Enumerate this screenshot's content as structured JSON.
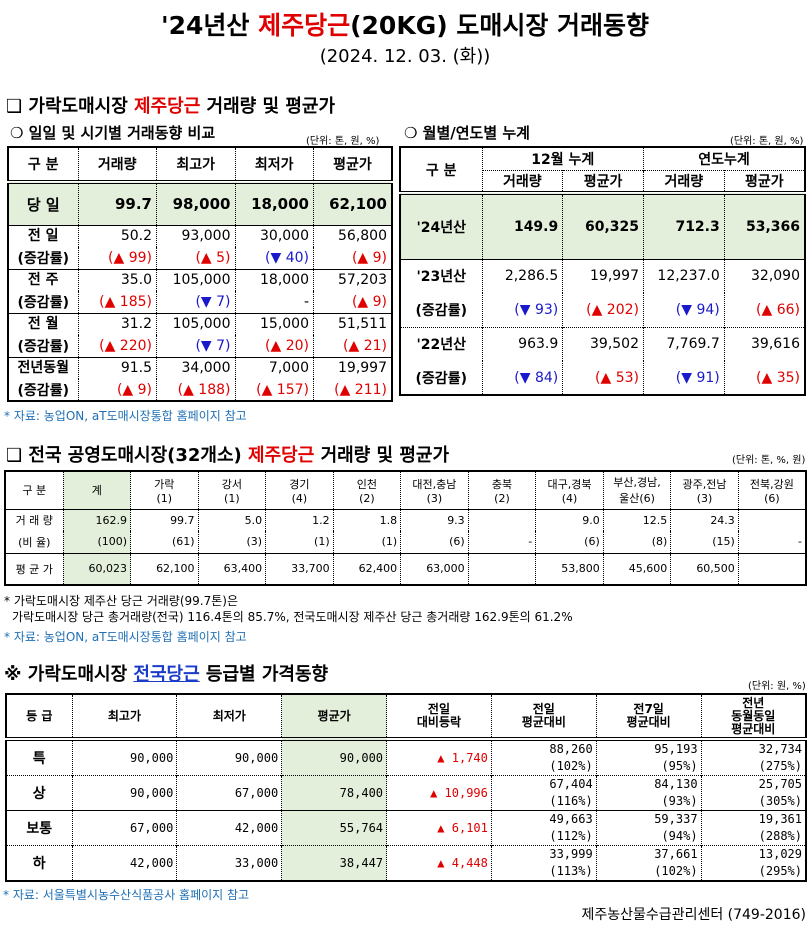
{
  "header": {
    "title_pre": "'24년산 ",
    "title_red": "제주당근",
    "title_post": "(20KG) 도매시장 거래동향",
    "date": "(2024. 12. 03. (화))"
  },
  "sec1": {
    "title_pre": "❑ 가락도매시장 ",
    "title_red": "제주당근",
    "title_post": " 거래량 및 평균가"
  },
  "daily": {
    "subtitle": "❍ 일일 및 시기별 거래동향 비교",
    "unit": "(단위: 톤, 원, %)",
    "headers": [
      "구  분",
      "거래량",
      "최고가",
      "최저가",
      "평균가"
    ],
    "today": {
      "label": "당  일",
      "values": [
        "99.7",
        "98,000",
        "18,000",
        "62,100"
      ]
    },
    "rows": [
      {
        "label": "전  일",
        "values": [
          "50.2",
          "93,000",
          "30,000",
          "56,800"
        ],
        "sub": "(증감률)",
        "changes": [
          "(▲ 99)",
          "(▲ 5)",
          "(▼ 40)",
          "(▲ 9)"
        ]
      },
      {
        "label": "전  주",
        "values": [
          "35.0",
          "105,000",
          "18,000",
          "57,203"
        ],
        "sub": "(증감률)",
        "changes": [
          "(▲ 185)",
          "(▼ 7)",
          "-",
          "(▲ 9)"
        ]
      },
      {
        "label": "전  월",
        "values": [
          "31.2",
          "105,000",
          "15,000",
          "51,511"
        ],
        "sub": "(증감률)",
        "changes": [
          "(▲ 220)",
          "(▼ 7)",
          "(▲ 20)",
          "(▲ 21)"
        ]
      },
      {
        "label": "전년동월",
        "values": [
          "91.5",
          "34,000",
          "7,000",
          "19,997"
        ],
        "sub": "(증감률)",
        "changes": [
          "(▲ 9)",
          "(▲ 188)",
          "(▲ 157)",
          "(▲ 211)"
        ]
      }
    ]
  },
  "cumul": {
    "subtitle": "❍ 월별/연도별 누계",
    "unit": "(단위: 톤, 원, %)",
    "h_label": "구  분",
    "h_month": "12월 누계",
    "h_year": "연도누계",
    "h_cols": [
      "거래량",
      "평균가",
      "거래량",
      "평균가"
    ],
    "current": {
      "label": "'24년산",
      "values": [
        "149.9",
        "60,325",
        "712.3",
        "53,366"
      ]
    },
    "rows": [
      {
        "label": "'23년산",
        "values": [
          "2,286.5",
          "19,997",
          "12,237.0",
          "32,090"
        ],
        "sub": "(증감률)",
        "changes": [
          "(▼ 93)",
          "(▲ 202)",
          "(▼ 94)",
          "(▲ 66)"
        ]
      },
      {
        "label": "'22년산",
        "values": [
          "963.9",
          "39,502",
          "7,769.7",
          "39,616"
        ],
        "sub": "(증감률)",
        "changes": [
          "(▼ 84)",
          "(▲ 53)",
          "(▼ 91)",
          "(▲ 35)"
        ]
      }
    ]
  },
  "source1": "* 자료: 농업ON, aT도매시장통합 홈페이지 참고",
  "sec2": {
    "title_pre": "❑ 전국 공영도매시장(32개소) ",
    "title_red": "제주당근",
    "title_post": " 거래량 및 평균가",
    "unit": "(단위: 톤, %, 원)",
    "headers": [
      [
        "구  분",
        ""
      ],
      [
        "계",
        ""
      ],
      [
        "가락",
        "(1)"
      ],
      [
        "강서",
        "(1)"
      ],
      [
        "경기",
        "(4)"
      ],
      [
        "인천",
        "(2)"
      ],
      [
        "대전,충남",
        "(3)"
      ],
      [
        "충북",
        "(2)"
      ],
      [
        "대구,경북",
        "(4)"
      ],
      [
        "부산,경남,",
        "울산(6)"
      ],
      [
        "광주,전남",
        "(3)"
      ],
      [
        "전북,강원",
        "(6)"
      ]
    ],
    "vol_label": "거 래 량",
    "ratio_label": "(비 율)",
    "avg_label": "평 균 가",
    "volume": [
      "162.9",
      "99.7",
      "5.0",
      "1.2",
      "1.8",
      "9.3",
      "",
      "9.0",
      "12.5",
      "24.3",
      ""
    ],
    "ratio": [
      "(100)",
      "(61)",
      "(3)",
      "(1)",
      "(1)",
      "(6)",
      "-",
      "(6)",
      "(8)",
      "(15)",
      "-"
    ],
    "avg": [
      "60,023",
      "62,100",
      "63,400",
      "33,700",
      "62,400",
      "63,000",
      "",
      "53,800",
      "45,600",
      "60,500",
      ""
    ]
  },
  "notes": [
    "* 가락도매시장 제주산 당근 거래량(99.7톤)은",
    "가락도매시장 당근 총거래량(전국) 116.4톤의 85.7%, 전국도매시장 제주산 당근 총거래량 162.9톤의 61.2%"
  ],
  "source2": "* 자료: 농업ON, aT도매시장통합 홈페이지 참고",
  "sec3": {
    "title_pre": "※ 가락도매시장 ",
    "title_blue": "전국당근",
    "title_post": " 등급별 가격동향",
    "unit": "(단위: 원, %)",
    "headers": [
      "등  급",
      "최고가",
      "최저가",
      "평균가",
      "전일\n대비등락",
      "전일\n평균대비",
      "전7일\n평균대비",
      "전년\n동월동일\n평균대비"
    ],
    "rows": [
      {
        "grade": "특",
        "max": "90,000",
        "min": "90,000",
        "avg": "90,000",
        "diff": "▲ 1,740",
        "prev": [
          "88,260",
          "(102%)"
        ],
        "prev7": [
          "95,193",
          "(95%)"
        ],
        "lastyear": [
          "32,734",
          "(275%)"
        ]
      },
      {
        "grade": "상",
        "max": "90,000",
        "min": "67,000",
        "avg": "78,400",
        "diff": "▲ 10,996",
        "prev": [
          "67,404",
          "(116%)"
        ],
        "prev7": [
          "84,130",
          "(93%)"
        ],
        "lastyear": [
          "25,705",
          "(305%)"
        ]
      },
      {
        "grade": "보통",
        "max": "67,000",
        "min": "42,000",
        "avg": "55,764",
        "diff": "▲ 6,101",
        "prev": [
          "49,663",
          "(112%)"
        ],
        "prev7": [
          "59,337",
          "(94%)"
        ],
        "lastyear": [
          "19,361",
          "(288%)"
        ]
      },
      {
        "grade": "하",
        "max": "42,000",
        "min": "33,000",
        "avg": "38,447",
        "diff": "▲ 4,448",
        "prev": [
          "33,999",
          "(113%)"
        ],
        "prev7": [
          "37,661",
          "(102%)"
        ],
        "lastyear": [
          "13,029",
          "(295%)"
        ]
      }
    ]
  },
  "source3": "* 자료: 서울특별시농수산식품공사 홈페이지 참고",
  "footer": "제주농산물수급관리센터 (749-2016)",
  "colors": {
    "red": "#e00000",
    "blue": "#1a3cc8",
    "highlight": "#e3eedb",
    "source": "#1f6fb5"
  }
}
